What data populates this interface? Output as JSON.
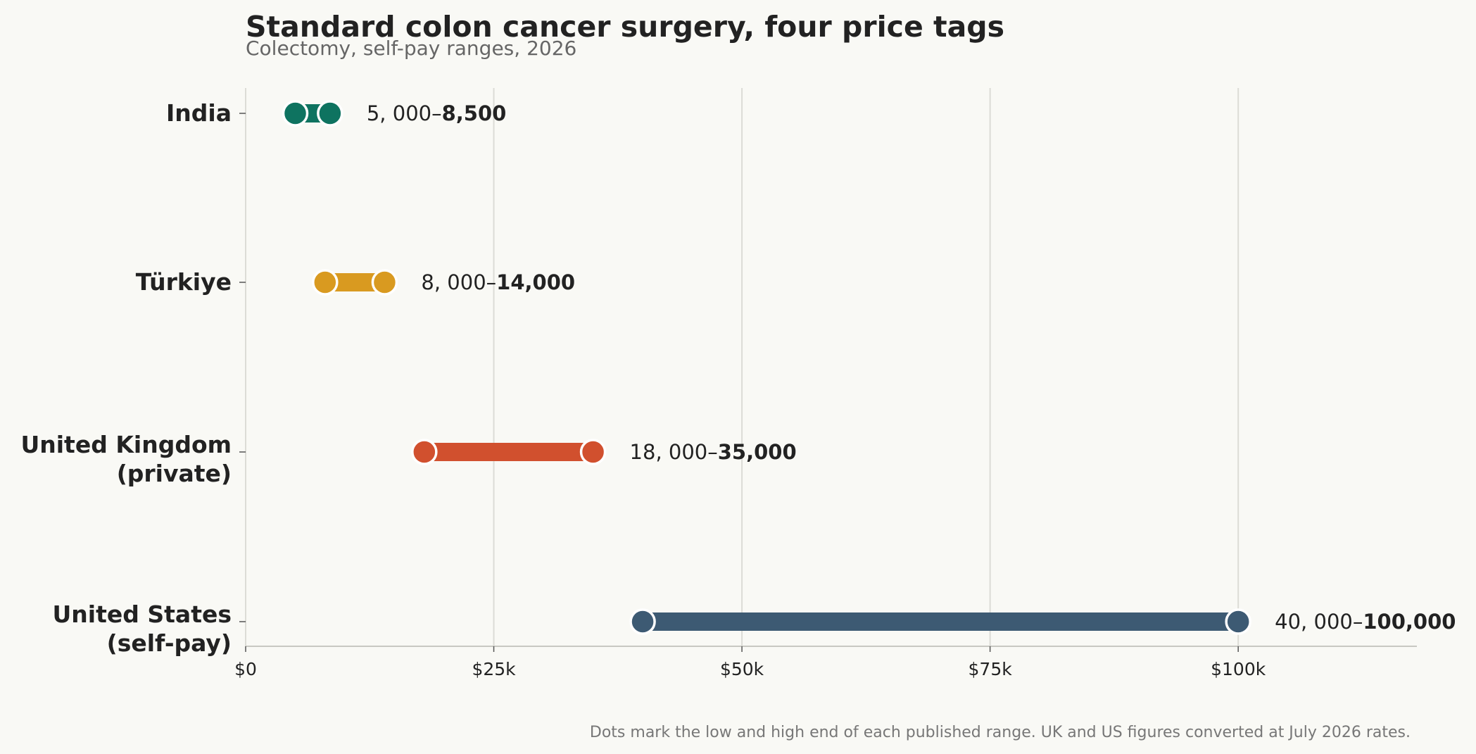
{
  "chart_data": {
    "type": "dumbbell",
    "title": "Standard colon cancer surgery, four price tags",
    "subtitle": "Colectomy, self-pay ranges, 2026",
    "xlim": [
      0,
      118000
    ],
    "x_ticks": [
      {
        "value": 0,
        "label": "$0"
      },
      {
        "value": 25000,
        "label": "$25k"
      },
      {
        "value": 50000,
        "label": "$50k"
      },
      {
        "value": 75000,
        "label": "$75k"
      },
      {
        "value": 100000,
        "label": "$100k"
      }
    ],
    "grid": "vertical",
    "series": [
      {
        "category": [
          "India"
        ],
        "low": 5000,
        "high": 8500,
        "color": "#0e7360",
        "label_low": "5, 000–",
        "label_high": "8,500"
      },
      {
        "category": [
          "Türkiye"
        ],
        "low": 8000,
        "high": 14000,
        "color": "#d99a20",
        "label_low": "8, 000–",
        "label_high": "14,000"
      },
      {
        "category": [
          "United Kingdom",
          "(private)"
        ],
        "low": 18000,
        "high": 35000,
        "color": "#d1502e",
        "label_low": "18, 000–",
        "label_high": "35,000"
      },
      {
        "category": [
          "United States",
          "(self-pay)"
        ],
        "low": 40000,
        "high": 100000,
        "color": "#3d5a73",
        "label_low": "40, 000–",
        "label_high": "100,000"
      }
    ],
    "note": "Dots mark the low and high end of each published range. UK and US figures converted at July 2026 rates."
  }
}
